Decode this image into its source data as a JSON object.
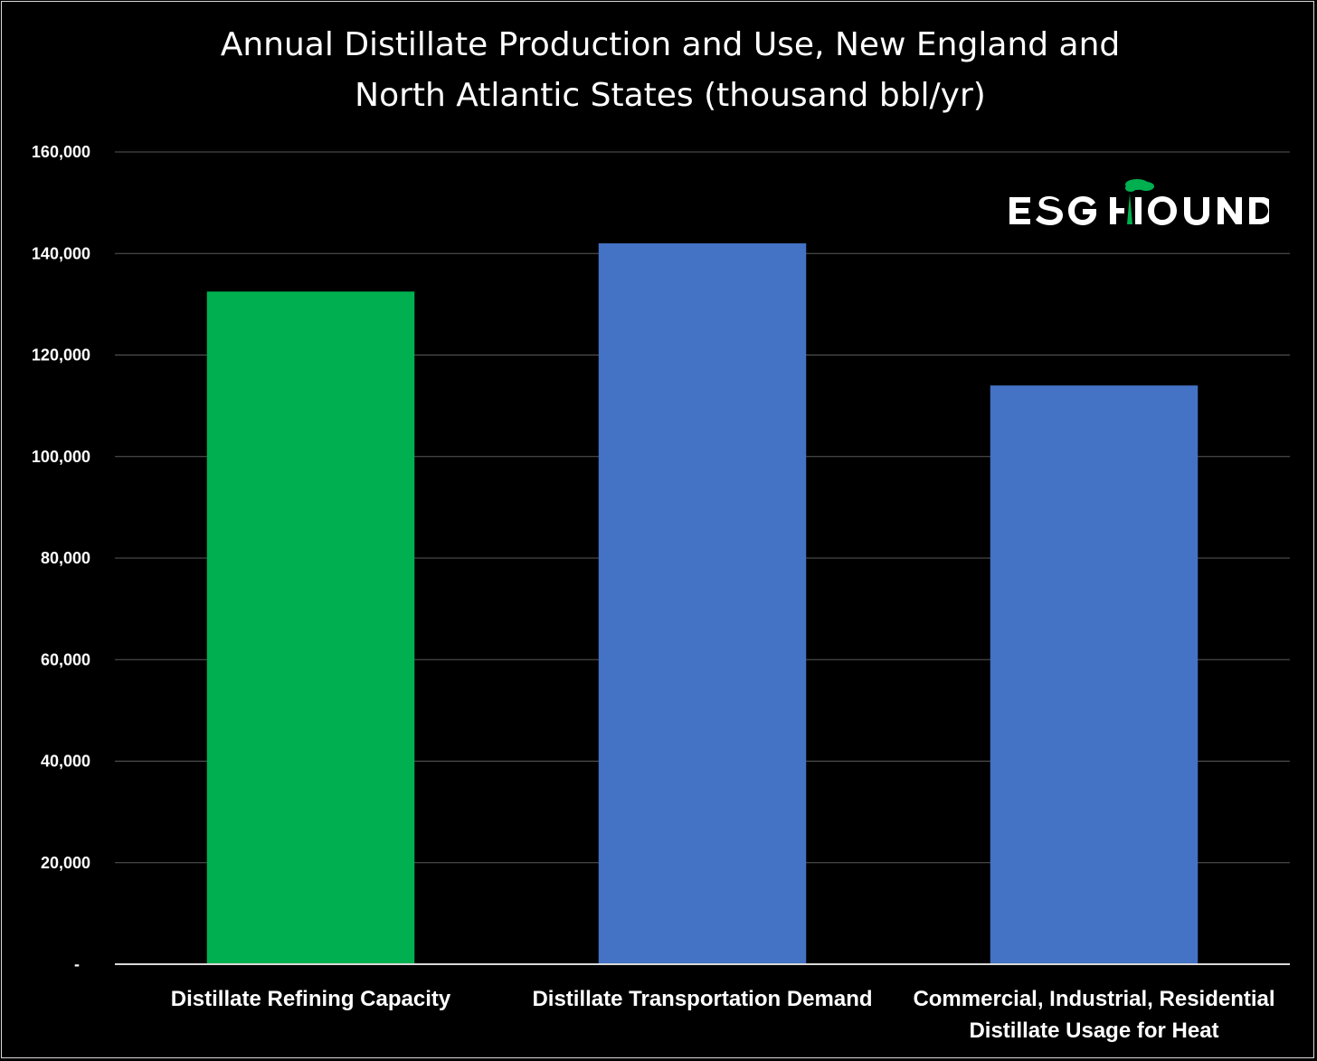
{
  "chart_data": {
    "type": "bar",
    "title_lines": [
      "Annual Distillate Production and Use, New England and",
      "North Atlantic States (thousand bbl/yr)"
    ],
    "categories": [
      [
        "Distillate Refining Capacity"
      ],
      [
        "Distillate Transportation Demand"
      ],
      [
        "Commercial, Industrial, Residential",
        "Distillate Usage for Heat"
      ]
    ],
    "values": [
      132500,
      142000,
      114000
    ],
    "bar_colors": [
      "#00b050",
      "#4472c4",
      "#4472c4"
    ],
    "ylim": [
      0,
      160000
    ],
    "yticks": [
      0,
      20000,
      40000,
      60000,
      80000,
      100000,
      120000,
      140000,
      160000
    ],
    "ytick_labels": [
      "-",
      "20,000",
      "40,000",
      "60,000",
      "80,000",
      "100,000",
      "120,000",
      "140,000",
      "160,000"
    ],
    "grid": true,
    "legend": "none"
  },
  "logo": {
    "text": "ESG HOUND",
    "color": "#ffffff",
    "accent": "#00b050"
  },
  "colors": {
    "background": "#000000",
    "gridline": "#595959",
    "text": "#ffffff"
  }
}
